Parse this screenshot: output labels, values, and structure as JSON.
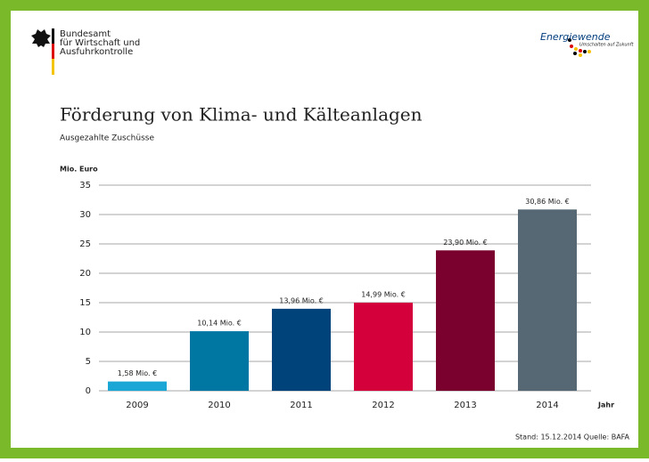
{
  "header": {
    "agency_lines": [
      "Bundesamt",
      "für Wirtschaft und",
      "Ausfuhrkontrolle"
    ],
    "logo_word_1": "Energie",
    "logo_word_2": "wende",
    "logo_tagline": "Umschalten auf Zukunft"
  },
  "chart_data": {
    "type": "bar",
    "title": "Förderung von Klima- und Kälteanlagen",
    "subtitle": "Ausgezahlte Zuschüsse",
    "ylabel": "Mio. Euro",
    "xlabel": "Jahr",
    "categories": [
      "2009",
      "2010",
      "2011",
      "2012",
      "2013",
      "2014"
    ],
    "values": [
      1.58,
      10.14,
      13.96,
      14.99,
      23.9,
      30.86
    ],
    "value_labels": [
      "1,58 Mio. €",
      "10,14 Mio. €",
      "13,96 Mio. €",
      "14,99 Mio. €",
      "23,90 Mio. €",
      "30,86 Mio. €"
    ],
    "colors": [
      "#1aa7d6",
      "#0077a3",
      "#00437a",
      "#d4003c",
      "#7a002e",
      "#566873"
    ],
    "ylim": [
      0,
      35
    ],
    "yticks": [
      0,
      5,
      10,
      15,
      20,
      25,
      30,
      35
    ],
    "grid": true,
    "source": "Stand: 15.12.2014  Quelle: BAFA"
  }
}
